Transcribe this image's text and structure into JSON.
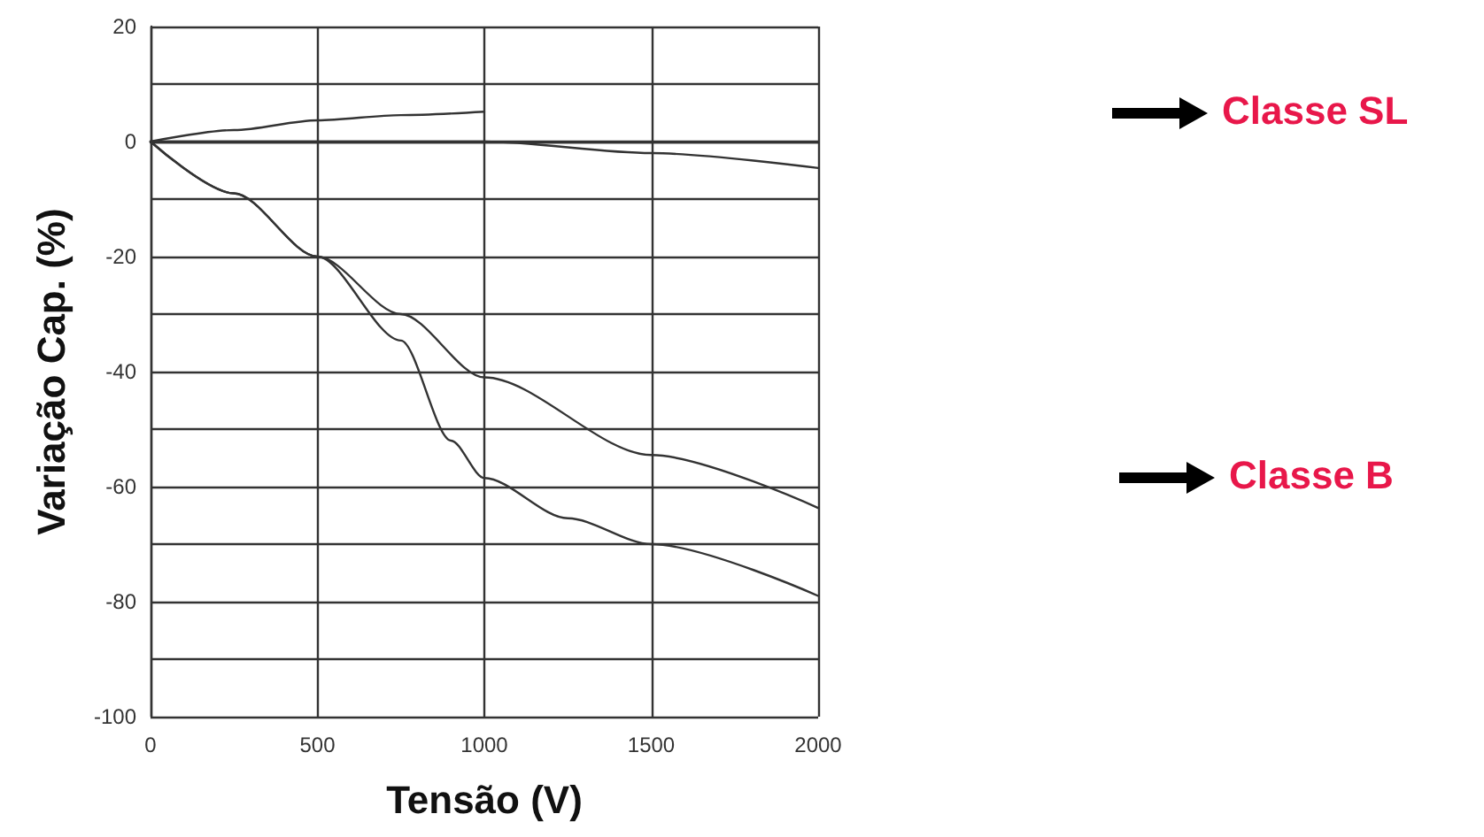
{
  "chart_data": {
    "type": "line",
    "xlabel": "Tensão (V)",
    "ylabel": "Variação Cap. (%)",
    "annotations": [
      "Classe SL",
      "Classe B"
    ],
    "xlim": [
      0,
      2000
    ],
    "xticks": [
      0,
      500,
      1000,
      1500,
      2000
    ],
    "ylim": [
      -100,
      20
    ],
    "yticks": [
      20,
      {
        "value": 10,
        "label": null
      },
      0,
      {
        "value": -10,
        "label": null
      },
      -20,
      {
        "value": -30,
        "label": null
      },
      -40,
      {
        "value": -50,
        "label": null
      },
      -60,
      {
        "value": -70,
        "label": null
      },
      -80,
      {
        "value": -90,
        "label": null
      },
      -100
    ],
    "grid": true,
    "series": [
      {
        "color": "#333333",
        "x": [
          0,
          250,
          500,
          750,
          1000
        ],
        "values": [
          0,
          2,
          3.7,
          4.6,
          5.2
        ]
      },
      {
        "color": "#333333",
        "x": [
          0,
          1000,
          2000
        ],
        "values": [
          0,
          0,
          0
        ]
      },
      {
        "color": "#333333",
        "x": [
          0,
          1000,
          1500,
          2000
        ],
        "values": [
          0,
          0,
          -2,
          -4.6
        ]
      },
      {
        "color": "#333333",
        "x": [
          0,
          250,
          500,
          750,
          1000,
          1500,
          2000
        ],
        "values": [
          0,
          -9,
          -20,
          -30,
          -41,
          -54.5,
          -63.7
        ]
      },
      {
        "color": "#333333",
        "x": [
          0,
          250,
          500,
          750,
          900,
          1000,
          1250,
          1500,
          2000
        ],
        "values": [
          0,
          -9,
          -20,
          -34.6,
          -52,
          -58.5,
          -65.5,
          -70,
          -79
        ]
      }
    ]
  }
}
